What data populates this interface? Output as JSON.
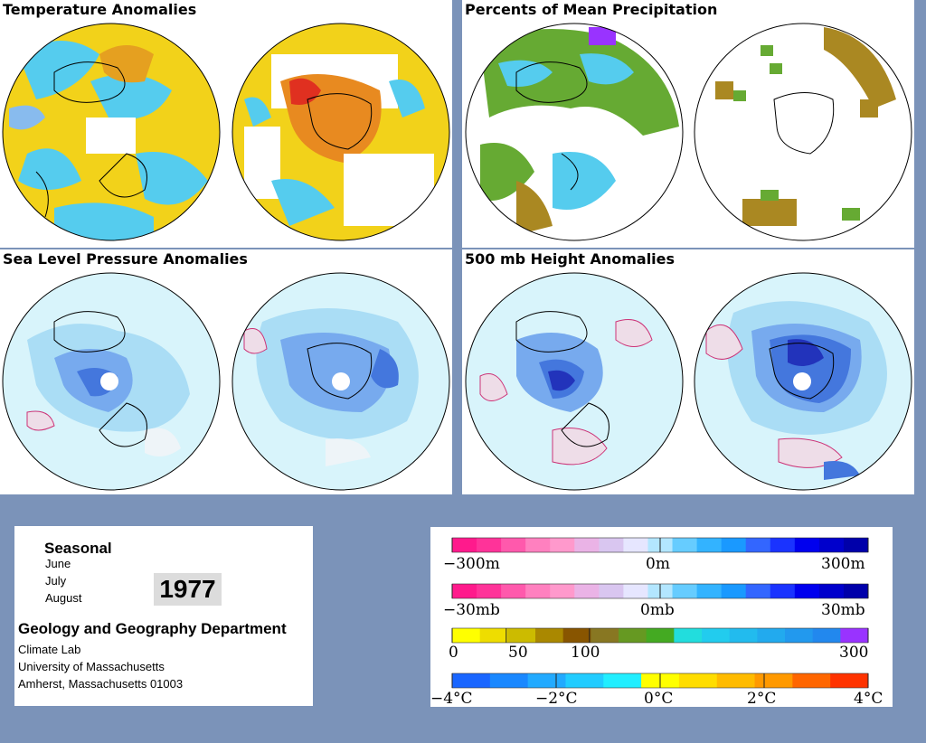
{
  "panels": {
    "temperature": "Temperature Anomalies",
    "precipitation": "Percents of Mean Precipitation",
    "slp": "Sea Level Pressure Anomalies",
    "height": "500 mb Height Anomalies"
  },
  "info": {
    "period": "Seasonal",
    "months": [
      "June",
      "July",
      "August"
    ],
    "year": "1977",
    "department": "Geology and Geography Department",
    "lines": [
      "Climate Lab",
      "University of Massachusetts",
      "Amherst, Massachusetts 01003"
    ]
  },
  "legend": {
    "height": {
      "labels": [
        "−300m",
        "0m",
        "300m"
      ],
      "colors": [
        "#ff1a8c",
        "#ff3399",
        "#ff59ac",
        "#ff80bf",
        "#ff99cc",
        "#eab3e6",
        "#d9c6f0",
        "#e6e6ff",
        "#b3e6ff",
        "#66ccff",
        "#33b3ff",
        "#1a99ff",
        "#3366ff",
        "#1a33ff",
        "#0000ee",
        "#0000cc",
        "#0000aa"
      ]
    },
    "pressure": {
      "labels": [
        "−30mb",
        "0mb",
        "30mb"
      ],
      "colors": [
        "#ff1a8c",
        "#ff3399",
        "#ff59ac",
        "#ff80bf",
        "#ff99cc",
        "#eab3e6",
        "#d9c6f0",
        "#e6e6ff",
        "#b3e6ff",
        "#66ccff",
        "#33b3ff",
        "#1a99ff",
        "#3366ff",
        "#1a33ff",
        "#0000ee",
        "#0000cc",
        "#0000aa"
      ]
    },
    "precip": {
      "labels": [
        "0",
        "50",
        "100",
        "300"
      ],
      "colors": [
        "#ffff00",
        "#eedd00",
        "#ccbb00",
        "#aa8800",
        "#885500",
        "#887722",
        "#669922",
        "#44aa22",
        "#22dddd",
        "#22ccee",
        "#22bbee",
        "#22aaee",
        "#2299ee",
        "#2288ee",
        "#9933ff"
      ]
    },
    "temp": {
      "labels": [
        "−4°C",
        "−2°C",
        "0°C",
        "2°C",
        "4°C"
      ],
      "colors": [
        "#1a66ff",
        "#1a88ff",
        "#22aaff",
        "#22ccff",
        "#22eeff",
        "#ffff00",
        "#ffdd00",
        "#ffbb00",
        "#ff9900",
        "#ff6600",
        "#ff3300"
      ]
    }
  }
}
